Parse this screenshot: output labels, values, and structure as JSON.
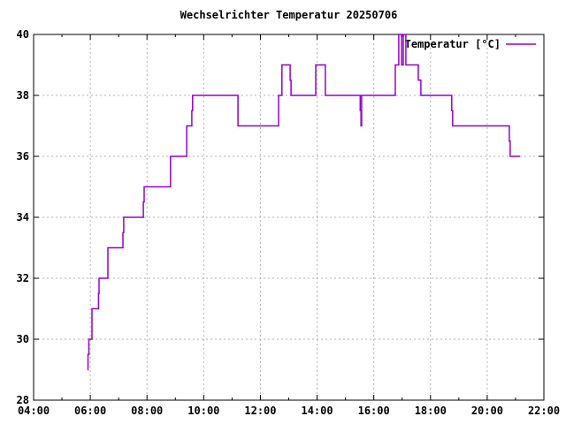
{
  "title": "Wechselrichter Temperatur 20250706",
  "legend": {
    "label": "Temperatur [°C]",
    "position": "top-right"
  },
  "colors": {
    "series": "#9400D3",
    "grid": "#b3b3b3",
    "axis": "#000000",
    "text": "#000000",
    "background": "#ffffff"
  },
  "chart_data": {
    "type": "line",
    "step": "after",
    "title": "Wechselrichter Temperatur 20250706",
    "xlabel": "",
    "ylabel": "",
    "xlim": [
      4,
      22
    ],
    "ylim": [
      28,
      40
    ],
    "grid": true,
    "legend_position": "top-right",
    "x_major_ticks": [
      4,
      6,
      8,
      10,
      12,
      14,
      16,
      18,
      20,
      22
    ],
    "x_tick_labels": [
      "04:00",
      "06:00",
      "08:00",
      "10:00",
      "12:00",
      "14:00",
      "16:00",
      "18:00",
      "20:00",
      "22:00"
    ],
    "x_minor_ticks": [
      5,
      7,
      9,
      11,
      13,
      15,
      17,
      19,
      21
    ],
    "y_major_ticks": [
      28,
      30,
      32,
      34,
      36,
      38,
      40
    ],
    "y_tick_labels": [
      "28",
      "30",
      "32",
      "34",
      "36",
      "38",
      "40"
    ],
    "series": [
      {
        "name": "Temperatur [°C]",
        "color": "#9400D3",
        "points_format": "[hour_decimal, temperature_celsius], step-after",
        "points": [
          [
            5.9,
            29.0
          ],
          [
            5.92,
            29.5
          ],
          [
            5.95,
            30.0
          ],
          [
            6.06,
            31.0
          ],
          [
            6.29,
            31.5
          ],
          [
            6.31,
            32.0
          ],
          [
            6.62,
            33.0
          ],
          [
            7.15,
            33.5
          ],
          [
            7.18,
            34.0
          ],
          [
            7.87,
            34.5
          ],
          [
            7.9,
            35.0
          ],
          [
            8.83,
            36.0
          ],
          [
            9.4,
            37.0
          ],
          [
            9.58,
            37.5
          ],
          [
            9.61,
            38.0
          ],
          [
            11.21,
            37.0
          ],
          [
            12.64,
            38.0
          ],
          [
            12.76,
            39.0
          ],
          [
            13.05,
            38.5
          ],
          [
            13.08,
            38.0
          ],
          [
            13.95,
            39.0
          ],
          [
            14.29,
            38.0
          ],
          [
            15.52,
            37.5
          ],
          [
            15.55,
            37.0
          ],
          [
            15.57,
            38.0
          ],
          [
            16.76,
            39.0
          ],
          [
            16.88,
            40.0
          ],
          [
            16.98,
            39.0
          ],
          [
            17.04,
            40.0
          ],
          [
            17.13,
            39.0
          ],
          [
            17.57,
            38.5
          ],
          [
            17.66,
            38.0
          ],
          [
            18.75,
            37.5
          ],
          [
            18.78,
            37.0
          ],
          [
            20.78,
            36.5
          ],
          [
            20.81,
            36.0
          ],
          [
            21.16,
            36.0
          ]
        ]
      }
    ]
  }
}
